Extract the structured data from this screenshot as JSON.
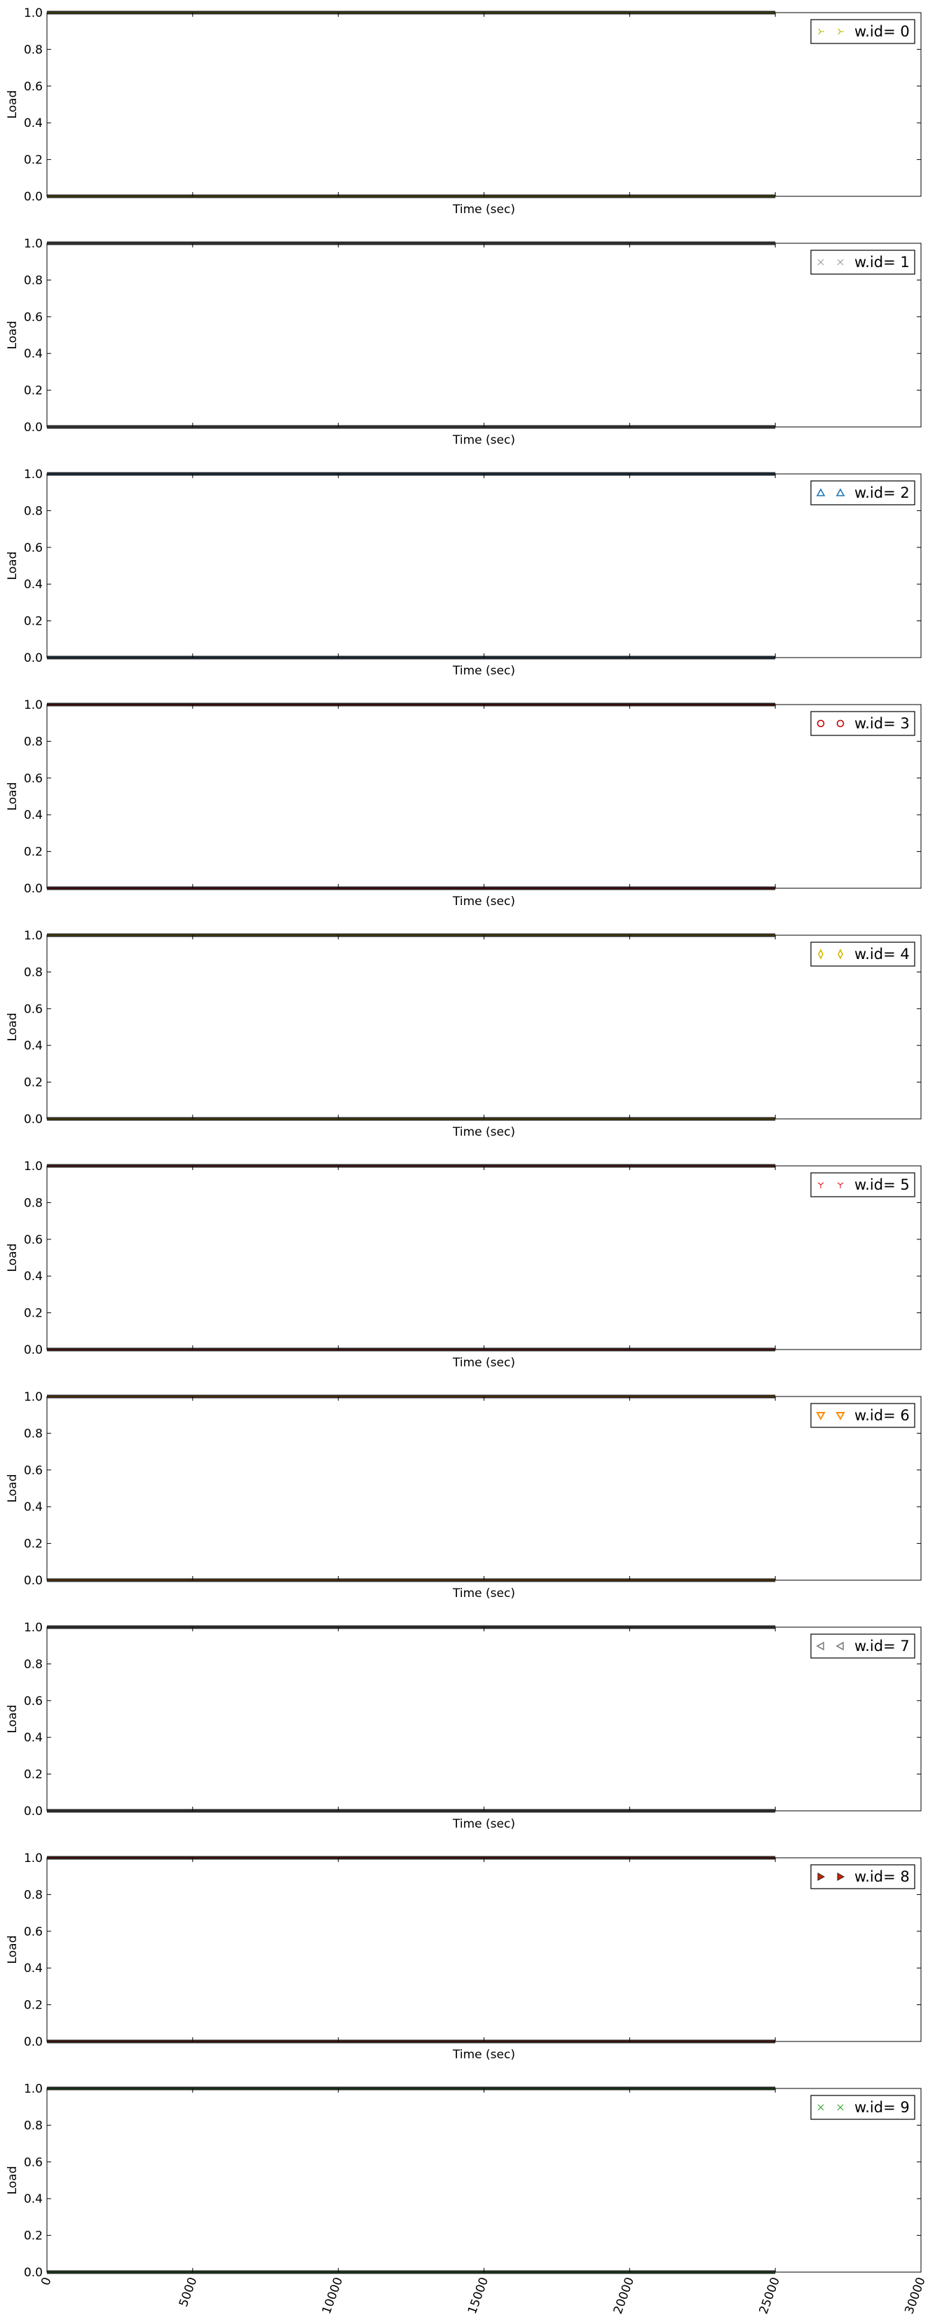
{
  "chart_data": [
    {
      "type": "scatter",
      "title": "",
      "xlabel": "Time (sec)",
      "ylabel": "Load",
      "xlim": [
        0,
        30000
      ],
      "ylim": [
        0,
        1
      ],
      "yticks": [
        "0.0",
        "0.2",
        "0.4",
        "0.6",
        "0.8",
        "1.0"
      ],
      "x_data_range": [
        0,
        25000
      ],
      "y_levels": [
        0,
        1
      ],
      "legend": {
        "label": "w.id= 0",
        "marker": "tri_right",
        "color": "#b5b500",
        "placement": "top-right"
      },
      "series": [
        {
          "name": "w.id= 0",
          "values": [
            0,
            1
          ]
        }
      ]
    },
    {
      "type": "scatter",
      "title": "",
      "xlabel": "Time (sec)",
      "ylabel": "Load",
      "xlim": [
        0,
        30000
      ],
      "ylim": [
        0,
        1
      ],
      "yticks": [
        "0.0",
        "0.2",
        "0.4",
        "0.6",
        "0.8",
        "1.0"
      ],
      "x_data_range": [
        0,
        25000
      ],
      "y_levels": [
        0,
        1
      ],
      "legend": {
        "label": "w.id= 1",
        "marker": "x",
        "color": "#9a9a9a",
        "placement": "top-right"
      },
      "series": [
        {
          "name": "w.id= 1",
          "values": [
            0,
            1
          ]
        }
      ]
    },
    {
      "type": "scatter",
      "title": "",
      "xlabel": "Time (sec)",
      "ylabel": "Load",
      "xlim": [
        0,
        30000
      ],
      "ylim": [
        0,
        1
      ],
      "yticks": [
        "0.0",
        "0.2",
        "0.4",
        "0.6",
        "0.8",
        "1.0"
      ],
      "x_data_range": [
        0,
        25000
      ],
      "y_levels": [
        0,
        1
      ],
      "legend": {
        "label": "w.id= 2",
        "marker": "triangle-up",
        "color": "#1f77b4",
        "placement": "top-right"
      },
      "series": [
        {
          "name": "w.id= 2",
          "values": [
            0,
            1
          ]
        }
      ]
    },
    {
      "type": "scatter",
      "title": "",
      "xlabel": "Time (sec)",
      "ylabel": "Load",
      "xlim": [
        0,
        30000
      ],
      "ylim": [
        0,
        1
      ],
      "yticks": [
        "0.0",
        "0.2",
        "0.4",
        "0.6",
        "0.8",
        "1.0"
      ],
      "x_data_range": [
        0,
        25000
      ],
      "y_levels": [
        0,
        1
      ],
      "legend": {
        "label": "w.id= 3",
        "marker": "circle",
        "color": "#cc0000",
        "placement": "top-right"
      },
      "series": [
        {
          "name": "w.id= 3",
          "values": [
            0,
            1
          ]
        }
      ]
    },
    {
      "type": "scatter",
      "title": "",
      "xlabel": "Time (sec)",
      "ylabel": "Load",
      "xlim": [
        0,
        30000
      ],
      "ylim": [
        0,
        1
      ],
      "yticks": [
        "0.0",
        "0.2",
        "0.4",
        "0.6",
        "0.8",
        "1.0"
      ],
      "x_data_range": [
        0,
        25000
      ],
      "y_levels": [
        0,
        1
      ],
      "legend": {
        "label": "w.id= 4",
        "marker": "thin-diamond",
        "color": "#d4b800",
        "placement": "top-right"
      },
      "series": [
        {
          "name": "w.id= 4",
          "values": [
            0,
            1
          ]
        }
      ]
    },
    {
      "type": "scatter",
      "title": "",
      "xlabel": "Time (sec)",
      "ylabel": "Load",
      "xlim": [
        0,
        30000
      ],
      "ylim": [
        0,
        1
      ],
      "yticks": [
        "0.0",
        "0.2",
        "0.4",
        "0.6",
        "0.8",
        "1.0"
      ],
      "x_data_range": [
        0,
        25000
      ],
      "y_levels": [
        0,
        1
      ],
      "legend": {
        "label": "w.id= 5",
        "marker": "tri_down",
        "color": "#e02020",
        "placement": "top-right"
      },
      "series": [
        {
          "name": "w.id= 5",
          "values": [
            0,
            1
          ]
        }
      ]
    },
    {
      "type": "scatter",
      "title": "",
      "xlabel": "Time (sec)",
      "ylabel": "Load",
      "xlim": [
        0,
        30000
      ],
      "ylim": [
        0,
        1
      ],
      "yticks": [
        "0.0",
        "0.2",
        "0.4",
        "0.6",
        "0.8",
        "1.0"
      ],
      "x_data_range": [
        0,
        25000
      ],
      "y_levels": [
        0,
        1
      ],
      "legend": {
        "label": "w.id= 6",
        "marker": "triangle-down",
        "color": "#ff8c00",
        "placement": "top-right"
      },
      "series": [
        {
          "name": "w.id= 6",
          "values": [
            0,
            1
          ]
        }
      ]
    },
    {
      "type": "scatter",
      "title": "",
      "xlabel": "Time (sec)",
      "ylabel": "Load",
      "xlim": [
        0,
        30000
      ],
      "ylim": [
        0,
        1
      ],
      "yticks": [
        "0.0",
        "0.2",
        "0.4",
        "0.6",
        "0.8",
        "1.0"
      ],
      "x_data_range": [
        0,
        25000
      ],
      "y_levels": [
        0,
        1
      ],
      "legend": {
        "label": "w.id= 7",
        "marker": "triangle-left",
        "color": "#808080",
        "placement": "top-right"
      },
      "series": [
        {
          "name": "w.id= 7",
          "values": [
            0,
            1
          ]
        }
      ]
    },
    {
      "type": "scatter",
      "title": "",
      "xlabel": "Time (sec)",
      "ylabel": "Load",
      "xlim": [
        0,
        30000
      ],
      "ylim": [
        0,
        1
      ],
      "yticks": [
        "0.0",
        "0.2",
        "0.4",
        "0.6",
        "0.8",
        "1.0"
      ],
      "x_data_range": [
        0,
        25000
      ],
      "y_levels": [
        0,
        1
      ],
      "legend": {
        "label": "w.id= 8",
        "marker": "triangle-right",
        "color": "#cc2200",
        "placement": "top-right"
      },
      "series": [
        {
          "name": "w.id= 8",
          "values": [
            0,
            1
          ]
        }
      ]
    },
    {
      "type": "scatter",
      "title": "",
      "xlabel": "Time (sec)",
      "ylabel": "Load",
      "xlim": [
        0,
        30000
      ],
      "ylim": [
        0,
        1
      ],
      "yticks": [
        "0.0",
        "0.2",
        "0.4",
        "0.6",
        "0.8",
        "1.0"
      ],
      "xticks": [
        "0",
        "5000",
        "10000",
        "15000",
        "20000",
        "25000",
        "30000"
      ],
      "x_data_range": [
        0,
        25000
      ],
      "y_levels": [
        0,
        1
      ],
      "legend": {
        "label": "w.id= 9",
        "marker": "x",
        "color": "#2ca02c",
        "placement": "top-right"
      },
      "series": [
        {
          "name": "w.id= 9",
          "values": [
            0,
            1
          ]
        }
      ]
    }
  ]
}
